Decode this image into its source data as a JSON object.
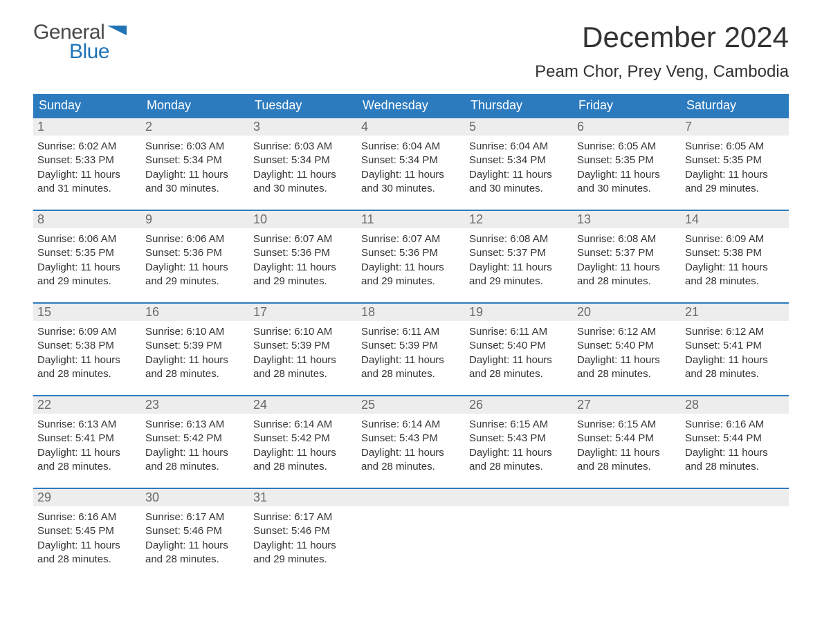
{
  "logo": {
    "general": "General",
    "blue": "Blue",
    "flag_color": "#1f73b7"
  },
  "header": {
    "month_title": "December 2024",
    "location": "Peam Chor, Prey Veng, Cambodia"
  },
  "styling": {
    "header_bg": "#2c7bbf",
    "header_text": "#ffffff",
    "row_border": "#2c7bbf",
    "daynum_bg": "#ededed",
    "daynum_color": "#6a6a6a",
    "body_text": "#333333",
    "page_bg": "#ffffff",
    "month_title_fontsize": 42,
    "location_fontsize": 24,
    "weekday_fontsize": 18,
    "body_fontsize": 15
  },
  "weekdays": [
    "Sunday",
    "Monday",
    "Tuesday",
    "Wednesday",
    "Thursday",
    "Friday",
    "Saturday"
  ],
  "weeks": [
    [
      {
        "n": "1",
        "sr": "Sunrise: 6:02 AM",
        "ss": "Sunset: 5:33 PM",
        "d1": "Daylight: 11 hours",
        "d2": "and 31 minutes."
      },
      {
        "n": "2",
        "sr": "Sunrise: 6:03 AM",
        "ss": "Sunset: 5:34 PM",
        "d1": "Daylight: 11 hours",
        "d2": "and 30 minutes."
      },
      {
        "n": "3",
        "sr": "Sunrise: 6:03 AM",
        "ss": "Sunset: 5:34 PM",
        "d1": "Daylight: 11 hours",
        "d2": "and 30 minutes."
      },
      {
        "n": "4",
        "sr": "Sunrise: 6:04 AM",
        "ss": "Sunset: 5:34 PM",
        "d1": "Daylight: 11 hours",
        "d2": "and 30 minutes."
      },
      {
        "n": "5",
        "sr": "Sunrise: 6:04 AM",
        "ss": "Sunset: 5:34 PM",
        "d1": "Daylight: 11 hours",
        "d2": "and 30 minutes."
      },
      {
        "n": "6",
        "sr": "Sunrise: 6:05 AM",
        "ss": "Sunset: 5:35 PM",
        "d1": "Daylight: 11 hours",
        "d2": "and 30 minutes."
      },
      {
        "n": "7",
        "sr": "Sunrise: 6:05 AM",
        "ss": "Sunset: 5:35 PM",
        "d1": "Daylight: 11 hours",
        "d2": "and 29 minutes."
      }
    ],
    [
      {
        "n": "8",
        "sr": "Sunrise: 6:06 AM",
        "ss": "Sunset: 5:35 PM",
        "d1": "Daylight: 11 hours",
        "d2": "and 29 minutes."
      },
      {
        "n": "9",
        "sr": "Sunrise: 6:06 AM",
        "ss": "Sunset: 5:36 PM",
        "d1": "Daylight: 11 hours",
        "d2": "and 29 minutes."
      },
      {
        "n": "10",
        "sr": "Sunrise: 6:07 AM",
        "ss": "Sunset: 5:36 PM",
        "d1": "Daylight: 11 hours",
        "d2": "and 29 minutes."
      },
      {
        "n": "11",
        "sr": "Sunrise: 6:07 AM",
        "ss": "Sunset: 5:36 PM",
        "d1": "Daylight: 11 hours",
        "d2": "and 29 minutes."
      },
      {
        "n": "12",
        "sr": "Sunrise: 6:08 AM",
        "ss": "Sunset: 5:37 PM",
        "d1": "Daylight: 11 hours",
        "d2": "and 29 minutes."
      },
      {
        "n": "13",
        "sr": "Sunrise: 6:08 AM",
        "ss": "Sunset: 5:37 PM",
        "d1": "Daylight: 11 hours",
        "d2": "and 28 minutes."
      },
      {
        "n": "14",
        "sr": "Sunrise: 6:09 AM",
        "ss": "Sunset: 5:38 PM",
        "d1": "Daylight: 11 hours",
        "d2": "and 28 minutes."
      }
    ],
    [
      {
        "n": "15",
        "sr": "Sunrise: 6:09 AM",
        "ss": "Sunset: 5:38 PM",
        "d1": "Daylight: 11 hours",
        "d2": "and 28 minutes."
      },
      {
        "n": "16",
        "sr": "Sunrise: 6:10 AM",
        "ss": "Sunset: 5:39 PM",
        "d1": "Daylight: 11 hours",
        "d2": "and 28 minutes."
      },
      {
        "n": "17",
        "sr": "Sunrise: 6:10 AM",
        "ss": "Sunset: 5:39 PM",
        "d1": "Daylight: 11 hours",
        "d2": "and 28 minutes."
      },
      {
        "n": "18",
        "sr": "Sunrise: 6:11 AM",
        "ss": "Sunset: 5:39 PM",
        "d1": "Daylight: 11 hours",
        "d2": "and 28 minutes."
      },
      {
        "n": "19",
        "sr": "Sunrise: 6:11 AM",
        "ss": "Sunset: 5:40 PM",
        "d1": "Daylight: 11 hours",
        "d2": "and 28 minutes."
      },
      {
        "n": "20",
        "sr": "Sunrise: 6:12 AM",
        "ss": "Sunset: 5:40 PM",
        "d1": "Daylight: 11 hours",
        "d2": "and 28 minutes."
      },
      {
        "n": "21",
        "sr": "Sunrise: 6:12 AM",
        "ss": "Sunset: 5:41 PM",
        "d1": "Daylight: 11 hours",
        "d2": "and 28 minutes."
      }
    ],
    [
      {
        "n": "22",
        "sr": "Sunrise: 6:13 AM",
        "ss": "Sunset: 5:41 PM",
        "d1": "Daylight: 11 hours",
        "d2": "and 28 minutes."
      },
      {
        "n": "23",
        "sr": "Sunrise: 6:13 AM",
        "ss": "Sunset: 5:42 PM",
        "d1": "Daylight: 11 hours",
        "d2": "and 28 minutes."
      },
      {
        "n": "24",
        "sr": "Sunrise: 6:14 AM",
        "ss": "Sunset: 5:42 PM",
        "d1": "Daylight: 11 hours",
        "d2": "and 28 minutes."
      },
      {
        "n": "25",
        "sr": "Sunrise: 6:14 AM",
        "ss": "Sunset: 5:43 PM",
        "d1": "Daylight: 11 hours",
        "d2": "and 28 minutes."
      },
      {
        "n": "26",
        "sr": "Sunrise: 6:15 AM",
        "ss": "Sunset: 5:43 PM",
        "d1": "Daylight: 11 hours",
        "d2": "and 28 minutes."
      },
      {
        "n": "27",
        "sr": "Sunrise: 6:15 AM",
        "ss": "Sunset: 5:44 PM",
        "d1": "Daylight: 11 hours",
        "d2": "and 28 minutes."
      },
      {
        "n": "28",
        "sr": "Sunrise: 6:16 AM",
        "ss": "Sunset: 5:44 PM",
        "d1": "Daylight: 11 hours",
        "d2": "and 28 minutes."
      }
    ],
    [
      {
        "n": "29",
        "sr": "Sunrise: 6:16 AM",
        "ss": "Sunset: 5:45 PM",
        "d1": "Daylight: 11 hours",
        "d2": "and 28 minutes."
      },
      {
        "n": "30",
        "sr": "Sunrise: 6:17 AM",
        "ss": "Sunset: 5:46 PM",
        "d1": "Daylight: 11 hours",
        "d2": "and 28 minutes."
      },
      {
        "n": "31",
        "sr": "Sunrise: 6:17 AM",
        "ss": "Sunset: 5:46 PM",
        "d1": "Daylight: 11 hours",
        "d2": "and 29 minutes."
      },
      null,
      null,
      null,
      null
    ]
  ]
}
